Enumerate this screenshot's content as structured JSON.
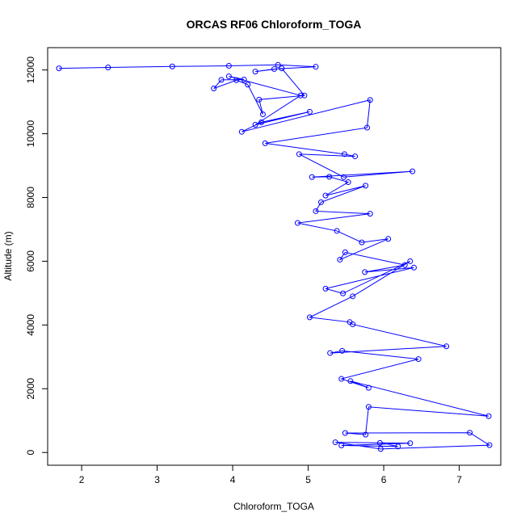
{
  "colors": {
    "series": "#0000ff",
    "axis": "#000000",
    "background": "#ffffff"
  },
  "chart_data": {
    "type": "line",
    "title": "ORCAS RF06 Chloroform_TOGA",
    "xlabel": "Chloroform_TOGA",
    "ylabel": "Altitude (m)",
    "xlim": [
      1.55,
      7.55
    ],
    "ylim": [
      -400,
      12700
    ],
    "xticks": [
      2,
      3,
      4,
      5,
      6,
      7
    ],
    "yticks": [
      0,
      2000,
      4000,
      6000,
      8000,
      10000,
      12000
    ],
    "xtick_labels": [
      "2",
      "3",
      "4",
      "5",
      "6",
      "7"
    ],
    "ytick_labels": [
      "0",
      "2000",
      "4000",
      "6000",
      "8000",
      "10000",
      "12000"
    ],
    "grid": false,
    "legend": "none",
    "markers": "open-circle",
    "series": [
      {
        "x": [
          1.7,
          2.35,
          3.2,
          3.95,
          4.6,
          5.1,
          4.55,
          4.3,
          4.65,
          4.95,
          4.35,
          4.4,
          4.2,
          4.05,
          3.75,
          3.85,
          4.15,
          3.95,
          4.9,
          4.3,
          5.02,
          4.38,
          4.12,
          5.82,
          5.78,
          4.43,
          5.48,
          5.62,
          4.88,
          5.47,
          6.38,
          5.05,
          5.28,
          5.53,
          5.23,
          5.76,
          5.17,
          5.1,
          5.82,
          4.86,
          5.38,
          5.71,
          6.06,
          5.42,
          5.49,
          6.28,
          5.75,
          6.4,
          5.23,
          5.46,
          6.35,
          5.59,
          5.02,
          5.55,
          5.59,
          6.83,
          5.29,
          5.45,
          6.46,
          5.44,
          5.8,
          5.56,
          7.39,
          5.8,
          5.76,
          5.49,
          7.14,
          7.4,
          5.96,
          5.36,
          6.35,
          5.44,
          6.19,
          5.95
        ],
        "y": [
          12050,
          12080,
          12110,
          12130,
          12160,
          12100,
          12030,
          11950,
          12050,
          11200,
          11070,
          10610,
          11540,
          11680,
          11420,
          11690,
          11700,
          11800,
          11200,
          10280,
          10690,
          10360,
          10060,
          11060,
          10190,
          9700,
          9360,
          9290,
          9360,
          8640,
          8820,
          8640,
          8650,
          8480,
          8060,
          8370,
          7850,
          7570,
          7490,
          7200,
          6950,
          6590,
          6700,
          6050,
          6280,
          5880,
          5660,
          5800,
          5140,
          4990,
          6000,
          4900,
          4240,
          4090,
          4020,
          3330,
          3120,
          3190,
          2930,
          2310,
          2030,
          2240,
          1140,
          1430,
          560,
          610,
          620,
          230,
          110,
          320,
          290,
          220,
          190,
          300
        ]
      }
    ]
  }
}
